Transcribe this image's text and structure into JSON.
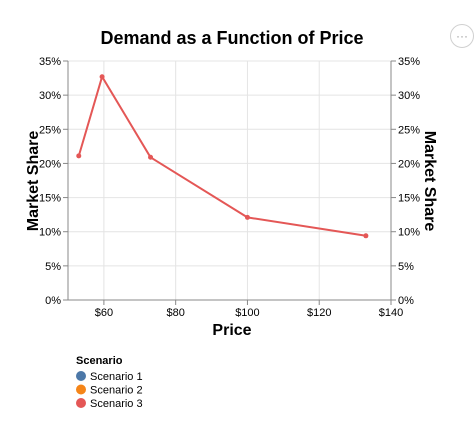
{
  "menu": {
    "icon": "ellipsis-icon",
    "label": "···"
  },
  "chart_data": {
    "type": "line",
    "title": "Demand as a Function of Price",
    "xlabel": "Price",
    "ylabel": "Market Share",
    "ylabel_right": "Market Share",
    "xlim": [
      50,
      140
    ],
    "ylim": [
      0,
      0.35
    ],
    "x_ticks": [
      {
        "value": 60,
        "label": "$60"
      },
      {
        "value": 80,
        "label": "$80"
      },
      {
        "value": 100,
        "label": "$100"
      },
      {
        "value": 120,
        "label": "$120"
      },
      {
        "value": 140,
        "label": "$140"
      }
    ],
    "y_ticks": [
      {
        "value": 0,
        "label": "0%"
      },
      {
        "value": 0.05,
        "label": "5%"
      },
      {
        "value": 0.1,
        "label": "10%"
      },
      {
        "value": 0.15,
        "label": "15%"
      },
      {
        "value": 0.2,
        "label": "20%"
      },
      {
        "value": 0.25,
        "label": "25%"
      },
      {
        "value": 0.3,
        "label": "30%"
      },
      {
        "value": 0.35,
        "label": "35%"
      }
    ],
    "grid": true,
    "legend": {
      "title": "Scenario",
      "placement": "bottom-left",
      "entries": [
        {
          "name": "Scenario 1",
          "color": "#4c78a8"
        },
        {
          "name": "Scenario 2",
          "color": "#f58518"
        },
        {
          "name": "Scenario 3",
          "color": "#e45756"
        }
      ]
    },
    "series": [
      {
        "name": "Scenario 3",
        "color": "#e45756",
        "x": [
          53,
          59.5,
          73,
          100,
          133
        ],
        "y": [
          0.211,
          0.327,
          0.209,
          0.121,
          0.094
        ]
      }
    ]
  }
}
